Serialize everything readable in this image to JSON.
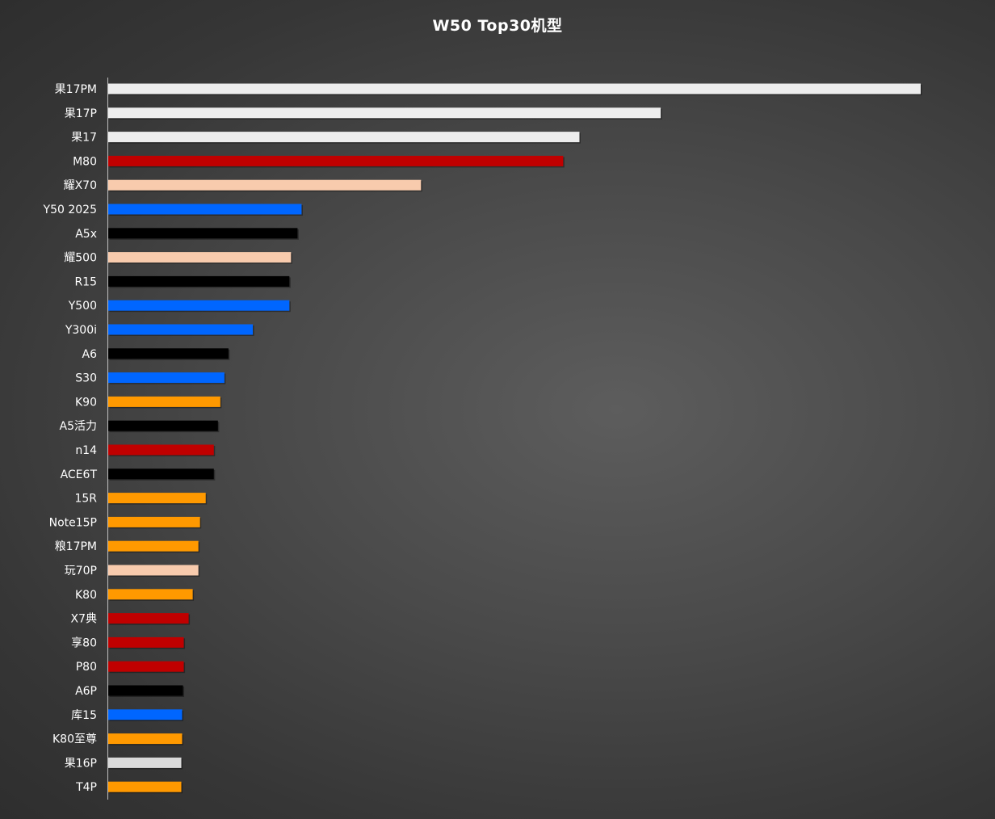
{
  "chart_data": {
    "type": "bar",
    "orientation": "horizontal",
    "title": "W50 Top30机型",
    "xlabel": "",
    "ylabel": "",
    "xlim": [
      0,
      100
    ],
    "grid": false,
    "legend": "none",
    "categories": [
      "果17PM",
      "果17P",
      "果17",
      "M80",
      "耀X70",
      "Y50 2025",
      "A5x",
      "耀500",
      "R15",
      "Y500",
      "Y300i",
      "A6",
      "S30",
      "K90",
      "A5活力",
      "n14",
      "ACE6T",
      "15R",
      "Note15P",
      "粮17PM",
      "玩70P",
      "K80",
      "X7典",
      "享80",
      "P80",
      "A6P",
      "库15",
      "K80至尊",
      "果16P",
      "T4P"
    ],
    "values": [
      100,
      68,
      58,
      56,
      38.5,
      23.8,
      23.3,
      22.5,
      22.3,
      22.3,
      17.8,
      14.8,
      14.3,
      13.8,
      13.5,
      13,
      13,
      12,
      11.3,
      11.1,
      11.1,
      10.4,
      9.9,
      9.3,
      9.3,
      9.2,
      9.1,
      9.1,
      9,
      9
    ],
    "colors": [
      "#ededed",
      "#ededed",
      "#ededed",
      "#c00000",
      "#f8cbad",
      "#0066ff",
      "#000000",
      "#f8cbad",
      "#000000",
      "#0066ff",
      "#0066ff",
      "#000000",
      "#0066ff",
      "#ff9900",
      "#000000",
      "#c00000",
      "#000000",
      "#ff9900",
      "#ff9900",
      "#ff9900",
      "#f8cbad",
      "#ff9900",
      "#c00000",
      "#c00000",
      "#c00000",
      "#000000",
      "#0066ff",
      "#ff9900",
      "#d9d9d9",
      "#ff9900"
    ]
  }
}
